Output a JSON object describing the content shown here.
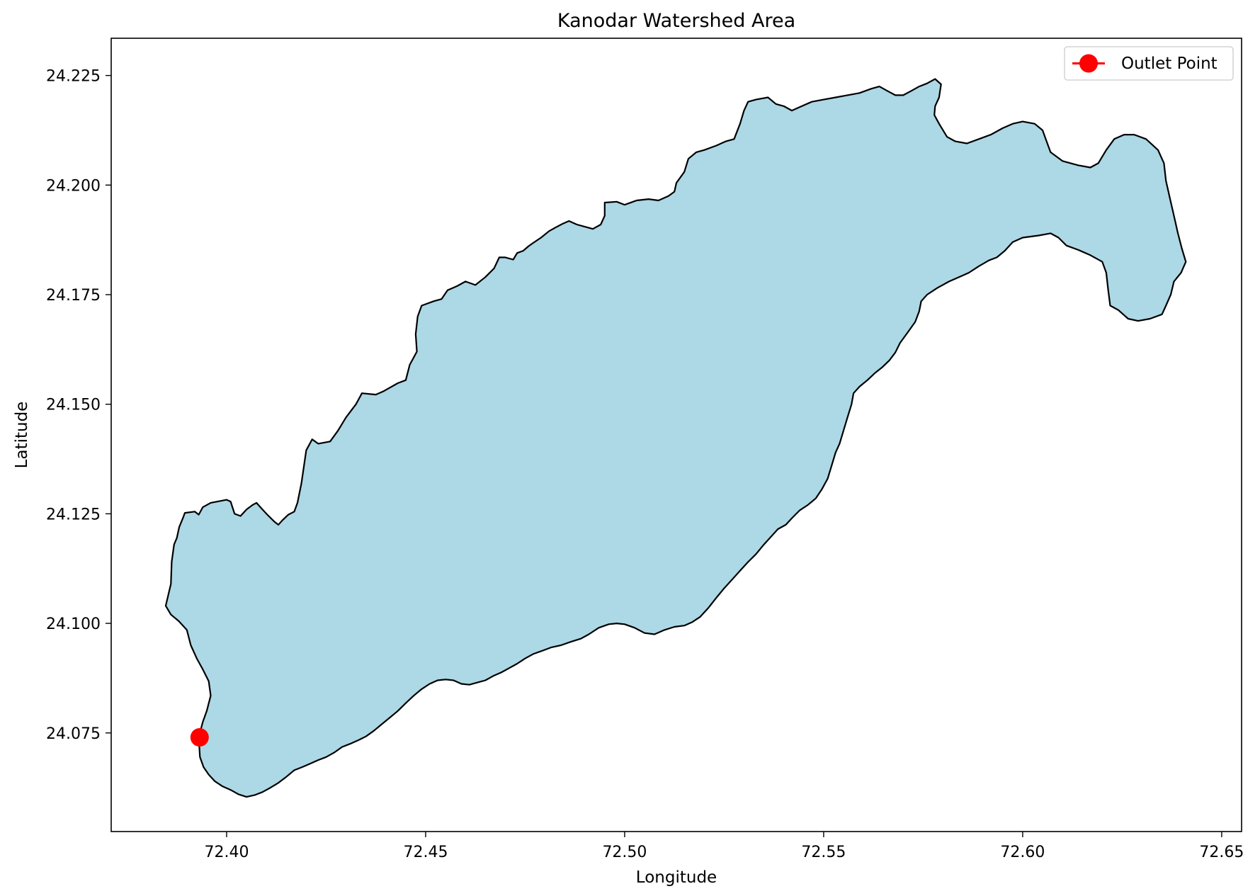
{
  "chart_data": {
    "type": "map",
    "title": "Kanodar Watershed Area",
    "xlabel": "Longitude",
    "ylabel": "Latitude",
    "xlim": [
      72.371,
      72.655
    ],
    "ylim": [
      24.0525,
      24.2335
    ],
    "x_ticks": [
      72.4,
      72.45,
      72.5,
      72.55,
      72.6,
      72.65
    ],
    "x_tick_labels": [
      "72.40",
      "72.45",
      "72.50",
      "72.55",
      "72.60",
      "72.65"
    ],
    "y_ticks": [
      24.075,
      24.1,
      24.125,
      24.15,
      24.175,
      24.2,
      24.225
    ],
    "y_tick_labels": [
      "24.075",
      "24.100",
      "24.125",
      "24.150",
      "24.175",
      "24.200",
      "24.225"
    ],
    "grid": false,
    "legend": {
      "position": "top-right",
      "entries": [
        {
          "label": "Outlet Point",
          "color": "#ff0000",
          "marker": "circle"
        }
      ]
    },
    "watershed": {
      "fill": "#add8e6",
      "edge": "#000000",
      "boundary": [
        [
          72.3847,
          24.104
        ],
        [
          72.386,
          24.109
        ],
        [
          72.3862,
          24.114
        ],
        [
          72.3868,
          24.118
        ],
        [
          72.3875,
          24.1195
        ],
        [
          72.3881,
          24.122
        ],
        [
          72.389,
          24.124
        ],
        [
          72.3895,
          24.1252
        ],
        [
          72.392,
          24.1255
        ],
        [
          72.393,
          24.1248
        ],
        [
          72.394,
          24.1265
        ],
        [
          72.396,
          24.1275
        ],
        [
          72.4,
          24.1282
        ],
        [
          72.401,
          24.1278
        ],
        [
          72.402,
          24.125
        ],
        [
          72.4035,
          24.1245
        ],
        [
          72.405,
          24.126
        ],
        [
          72.4065,
          24.127
        ],
        [
          72.4075,
          24.1275
        ],
        [
          72.4085,
          24.1265
        ],
        [
          72.41,
          24.125
        ],
        [
          72.412,
          24.1232
        ],
        [
          72.413,
          24.1225
        ],
        [
          72.414,
          24.1235
        ],
        [
          72.4155,
          24.1248
        ],
        [
          72.417,
          24.1255
        ],
        [
          72.4178,
          24.1275
        ],
        [
          72.4188,
          24.132
        ],
        [
          72.42,
          24.1395
        ],
        [
          72.4215,
          24.142
        ],
        [
          72.423,
          24.141
        ],
        [
          72.426,
          24.1415
        ],
        [
          72.428,
          24.144
        ],
        [
          72.43,
          24.147
        ],
        [
          72.4325,
          24.15
        ],
        [
          72.434,
          24.1525
        ],
        [
          72.4375,
          24.1522
        ],
        [
          72.4395,
          24.153
        ],
        [
          72.443,
          24.1548
        ],
        [
          72.445,
          24.1555
        ],
        [
          72.446,
          24.159
        ],
        [
          72.4478,
          24.162
        ],
        [
          72.4475,
          24.166
        ],
        [
          72.448,
          24.17
        ],
        [
          72.449,
          24.1725
        ],
        [
          72.452,
          24.1735
        ],
        [
          72.454,
          24.174
        ],
        [
          72.4555,
          24.176
        ],
        [
          72.458,
          24.177
        ],
        [
          72.46,
          24.178
        ],
        [
          72.4625,
          24.1772
        ],
        [
          72.465,
          24.179
        ],
        [
          72.4672,
          24.181
        ],
        [
          72.4685,
          24.1835
        ],
        [
          72.47,
          24.1835
        ],
        [
          72.472,
          24.183
        ],
        [
          72.473,
          24.1845
        ],
        [
          72.4745,
          24.185
        ],
        [
          72.4758,
          24.186
        ],
        [
          72.477,
          24.1868
        ],
        [
          72.479,
          24.188
        ],
        [
          72.481,
          24.1895
        ],
        [
          72.483,
          24.1905
        ],
        [
          72.4845,
          24.1912
        ],
        [
          72.486,
          24.1918
        ],
        [
          72.488,
          24.191
        ],
        [
          72.49,
          24.1905
        ],
        [
          72.492,
          24.19
        ],
        [
          72.494,
          24.191
        ],
        [
          72.495,
          24.193
        ],
        [
          72.495,
          24.196
        ],
        [
          72.498,
          24.1962
        ],
        [
          72.5,
          24.1955
        ],
        [
          72.503,
          24.1965
        ],
        [
          72.506,
          24.1968
        ],
        [
          72.5085,
          24.1965
        ],
        [
          72.511,
          24.1975
        ],
        [
          72.5125,
          24.1985
        ],
        [
          72.513,
          24.2005
        ],
        [
          72.515,
          24.203
        ],
        [
          72.516,
          24.206
        ],
        [
          72.518,
          24.2075
        ],
        [
          72.52,
          24.208
        ],
        [
          72.523,
          24.209
        ],
        [
          72.5255,
          24.21
        ],
        [
          72.5275,
          24.2105
        ],
        [
          72.529,
          24.214
        ],
        [
          72.53,
          24.217
        ],
        [
          72.531,
          24.219
        ],
        [
          72.533,
          24.2195
        ],
        [
          72.536,
          24.22
        ],
        [
          72.538,
          24.2185
        ],
        [
          72.54,
          24.218
        ],
        [
          72.542,
          24.217
        ],
        [
          72.5445,
          24.218
        ],
        [
          72.547,
          24.219
        ],
        [
          72.55,
          24.2195
        ],
        [
          72.553,
          24.22
        ],
        [
          72.556,
          24.2205
        ],
        [
          72.559,
          24.221
        ],
        [
          72.562,
          24.222
        ],
        [
          72.564,
          24.2225
        ],
        [
          72.566,
          24.2215
        ],
        [
          72.568,
          24.2205
        ],
        [
          72.57,
          24.2205
        ],
        [
          72.572,
          24.2215
        ],
        [
          72.574,
          24.2225
        ],
        [
          72.576,
          24.2232
        ],
        [
          72.578,
          24.2242
        ],
        [
          72.5795,
          24.223
        ],
        [
          72.579,
          24.22
        ],
        [
          72.578,
          24.218
        ],
        [
          72.5778,
          24.216
        ],
        [
          72.579,
          24.214
        ],
        [
          72.581,
          24.211
        ],
        [
          72.583,
          24.21
        ],
        [
          72.586,
          24.2095
        ],
        [
          72.589,
          24.2105
        ],
        [
          72.592,
          24.2115
        ],
        [
          72.595,
          24.213
        ],
        [
          72.5975,
          24.214
        ],
        [
          72.6,
          24.2145
        ],
        [
          72.603,
          24.214
        ],
        [
          72.605,
          24.2125
        ],
        [
          72.606,
          24.21
        ],
        [
          72.607,
          24.2075
        ],
        [
          72.61,
          24.2055
        ],
        [
          72.614,
          24.2045
        ],
        [
          72.617,
          24.204
        ],
        [
          72.619,
          24.205
        ],
        [
          72.621,
          24.208
        ],
        [
          72.623,
          24.2105
        ],
        [
          72.6255,
          24.2115
        ],
        [
          72.628,
          24.2115
        ],
        [
          72.631,
          24.2105
        ],
        [
          72.634,
          24.208
        ],
        [
          72.6355,
          24.205
        ],
        [
          72.636,
          24.201
        ],
        [
          72.637,
          24.197
        ],
        [
          72.638,
          24.193
        ],
        [
          72.639,
          24.189
        ],
        [
          72.64,
          24.1855
        ],
        [
          72.641,
          24.1825
        ],
        [
          72.6398,
          24.18
        ],
        [
          72.638,
          24.178
        ],
        [
          72.6372,
          24.175
        ],
        [
          72.636,
          24.1725
        ],
        [
          72.635,
          24.1705
        ],
        [
          72.632,
          24.1695
        ],
        [
          72.629,
          24.169
        ],
        [
          72.6265,
          24.1695
        ],
        [
          72.624,
          24.1715
        ],
        [
          72.622,
          24.1725
        ],
        [
          72.6215,
          24.176
        ],
        [
          72.621,
          24.18
        ],
        [
          72.62,
          24.1825
        ],
        [
          72.617,
          24.184
        ],
        [
          72.614,
          24.1852
        ],
        [
          72.611,
          24.1862
        ],
        [
          72.609,
          24.188
        ],
        [
          72.607,
          24.189
        ],
        [
          72.604,
          24.1885
        ],
        [
          72.6,
          24.188
        ],
        [
          72.5975,
          24.187
        ],
        [
          72.5955,
          24.185
        ],
        [
          72.5935,
          24.1835
        ],
        [
          72.5915,
          24.1828
        ],
        [
          72.589,
          24.1815
        ],
        [
          72.5865,
          24.18
        ],
        [
          72.584,
          24.179
        ],
        [
          72.5815,
          24.178
        ],
        [
          72.5785,
          24.1765
        ],
        [
          72.576,
          24.175
        ],
        [
          72.5745,
          24.1735
        ],
        [
          72.574,
          24.1712
        ],
        [
          72.573,
          24.1688
        ],
        [
          72.5712,
          24.1665
        ],
        [
          72.5692,
          24.164
        ],
        [
          72.568,
          24.1618
        ],
        [
          72.5665,
          24.16
        ],
        [
          72.5648,
          24.1585
        ],
        [
          72.563,
          24.1572
        ],
        [
          72.561,
          24.1555
        ],
        [
          72.559,
          24.154
        ],
        [
          72.5575,
          24.1525
        ],
        [
          72.557,
          24.15
        ],
        [
          72.556,
          24.147
        ],
        [
          72.555,
          24.144
        ],
        [
          72.554,
          24.141
        ],
        [
          72.553,
          24.139
        ],
        [
          72.552,
          24.136
        ],
        [
          72.551,
          24.133
        ],
        [
          72.5495,
          24.1305
        ],
        [
          72.548,
          24.1285
        ],
        [
          72.546,
          24.127
        ],
        [
          72.544,
          24.1258
        ],
        [
          72.542,
          24.124
        ],
        [
          72.5405,
          24.1225
        ],
        [
          72.5385,
          24.1215
        ],
        [
          72.537,
          24.12
        ],
        [
          72.535,
          24.118
        ],
        [
          72.533,
          24.1158
        ],
        [
          72.531,
          24.114
        ],
        [
          72.529,
          24.112
        ],
        [
          72.527,
          24.11
        ],
        [
          72.525,
          24.108
        ],
        [
          72.523,
          24.1058
        ],
        [
          72.521,
          24.1035
        ],
        [
          72.519,
          24.1015
        ],
        [
          72.517,
          24.1003
        ],
        [
          72.515,
          24.0995
        ],
        [
          72.5125,
          24.0992
        ],
        [
          72.51,
          24.0985
        ],
        [
          72.5075,
          24.0975
        ],
        [
          72.505,
          24.0978
        ],
        [
          72.5025,
          24.099
        ],
        [
          72.5,
          24.0998
        ],
        [
          72.498,
          24.1
        ],
        [
          72.496,
          24.0998
        ],
        [
          72.4935,
          24.099
        ],
        [
          72.491,
          24.0975
        ],
        [
          72.489,
          24.0965
        ],
        [
          72.4865,
          24.0958
        ],
        [
          72.484,
          24.095
        ],
        [
          72.4815,
          24.0945
        ],
        [
          72.4795,
          24.0938
        ],
        [
          72.477,
          24.093
        ],
        [
          72.475,
          24.092
        ],
        [
          72.473,
          24.0908
        ],
        [
          72.471,
          24.0898
        ],
        [
          72.469,
          24.0888
        ],
        [
          72.467,
          24.088
        ],
        [
          72.465,
          24.087
        ],
        [
          72.463,
          24.0865
        ],
        [
          72.461,
          24.086
        ],
        [
          72.459,
          24.0862
        ],
        [
          72.457,
          24.087
        ],
        [
          72.455,
          24.0872
        ],
        [
          72.453,
          24.087
        ],
        [
          72.451,
          24.0862
        ],
        [
          72.449,
          24.085
        ],
        [
          72.447,
          24.0835
        ],
        [
          72.445,
          24.0818
        ],
        [
          72.443,
          24.08
        ],
        [
          72.441,
          24.0785
        ],
        [
          72.439,
          24.077
        ],
        [
          72.437,
          24.0755
        ],
        [
          72.435,
          24.0742
        ],
        [
          72.433,
          24.0733
        ],
        [
          72.431,
          24.0725
        ],
        [
          72.429,
          24.0718
        ],
        [
          72.427,
          24.0705
        ],
        [
          72.425,
          24.0695
        ],
        [
          72.423,
          24.0688
        ],
        [
          72.421,
          24.068
        ],
        [
          72.419,
          24.0672
        ],
        [
          72.417,
          24.0665
        ],
        [
          72.415,
          24.065
        ],
        [
          72.413,
          24.0636
        ],
        [
          72.411,
          24.0625
        ],
        [
          72.409,
          24.0615
        ],
        [
          72.407,
          24.0608
        ],
        [
          72.405,
          24.0604
        ],
        [
          72.403,
          24.061
        ],
        [
          72.401,
          24.062
        ],
        [
          72.399,
          24.0628
        ],
        [
          72.397,
          24.064
        ],
        [
          72.3955,
          24.0655
        ],
        [
          72.3942,
          24.0672
        ],
        [
          72.3933,
          24.0695
        ],
        [
          72.393,
          24.074
        ],
        [
          72.394,
          24.0775
        ],
        [
          72.395,
          24.08
        ],
        [
          72.396,
          24.0835
        ],
        [
          72.3955,
          24.0868
        ],
        [
          72.394,
          24.0895
        ],
        [
          72.3925,
          24.092
        ],
        [
          72.391,
          24.095
        ],
        [
          72.39,
          24.0985
        ],
        [
          72.388,
          24.1005
        ],
        [
          72.386,
          24.102
        ]
      ]
    },
    "outlet": {
      "lon": 72.3932,
      "lat": 24.074,
      "label": "Outlet Point",
      "color": "#ff0000"
    }
  }
}
